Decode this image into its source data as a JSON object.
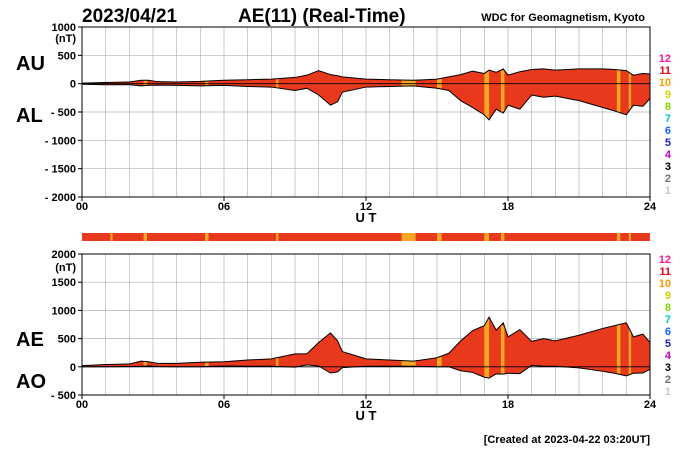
{
  "header": {
    "date": "2023/04/21",
    "title": "AE(11) (Real-Time)",
    "source": "WDC for Geomagnetism, Kyoto"
  },
  "footer": {
    "created": "[Created at 2023-04-22 03:20UT]"
  },
  "station_legend": {
    "labels": [
      "12",
      "11",
      "10",
      "9",
      "8",
      "7",
      "6",
      "5",
      "4",
      "3",
      "2",
      "1"
    ],
    "colors": [
      "#ff1493",
      "#e8001c",
      "#ff9900",
      "#d4d400",
      "#7fd400",
      "#00c8c8",
      "#1464ff",
      "#2020c0",
      "#c000c0",
      "#000000",
      "#6e6e6e",
      "#c8c8c8"
    ]
  },
  "colors": {
    "fill_main": "#e8391d",
    "fill_alt": "#f5a623",
    "grid": "#b4b4b4",
    "line": "#000000"
  },
  "chart_data": [
    {
      "type": "area",
      "name": "AU/AL",
      "side_labels": [
        "AU",
        "AL"
      ],
      "unit_label": "(nT)",
      "xlabel": "U T",
      "xticks": [
        "00",
        "06",
        "12",
        "18",
        "24"
      ],
      "xlim": [
        0,
        24
      ],
      "ylim": [
        -2000,
        1000
      ],
      "yticks": [
        "1000",
        "500",
        "0",
        "- 500",
        "- 1000",
        "- 1500",
        "- 2000"
      ],
      "ytick_values": [
        1000,
        500,
        0,
        -500,
        -1000,
        -1500,
        -2000
      ],
      "x": [
        0,
        1,
        2,
        2.5,
        2.8,
        3.2,
        4,
        5,
        6,
        7,
        8,
        9,
        9.5,
        10,
        10.5,
        10.8,
        11,
        12,
        13,
        14,
        14.5,
        15,
        15.5,
        16,
        16.5,
        17,
        17.2,
        17.5,
        17.8,
        18,
        18.5,
        19,
        19.5,
        20,
        21,
        22,
        22.5,
        23,
        23.3,
        23.7,
        24
      ],
      "series": [
        {
          "name": "AU",
          "values": [
            10,
            20,
            30,
            60,
            60,
            35,
            30,
            40,
            60,
            70,
            80,
            110,
            150,
            230,
            160,
            140,
            120,
            80,
            70,
            60,
            70,
            80,
            120,
            160,
            220,
            180,
            240,
            200,
            260,
            150,
            210,
            250,
            260,
            240,
            260,
            260,
            250,
            230,
            150,
            180,
            170
          ]
        },
        {
          "name": "AL",
          "values": [
            -10,
            -20,
            -20,
            -40,
            -30,
            -25,
            -30,
            -40,
            -30,
            -50,
            -60,
            -120,
            -80,
            -200,
            -380,
            -320,
            -150,
            -60,
            -50,
            -40,
            -60,
            -80,
            -120,
            -300,
            -420,
            -550,
            -640,
            -450,
            -520,
            -380,
            -450,
            -200,
            -240,
            -220,
            -300,
            -420,
            -480,
            -550,
            -380,
            -400,
            -260
          ]
        }
      ]
    },
    {
      "type": "area",
      "name": "AE/AO",
      "side_labels": [
        "AE",
        "AO"
      ],
      "unit_label": "(nT)",
      "xlabel": "U T",
      "xticks": [
        "00",
        "06",
        "12",
        "18",
        "24"
      ],
      "xlim": [
        0,
        24
      ],
      "ylim": [
        -500,
        2000
      ],
      "yticks": [
        "2000",
        "1500",
        "1000",
        "500",
        "0",
        "- 500"
      ],
      "ytick_values": [
        2000,
        1500,
        1000,
        500,
        0,
        -500
      ],
      "x": [
        0,
        1,
        2,
        2.5,
        2.8,
        3.2,
        4,
        5,
        6,
        7,
        8,
        9,
        9.5,
        10,
        10.5,
        10.8,
        11,
        12,
        13,
        14,
        14.5,
        15,
        15.5,
        16,
        16.5,
        17,
        17.2,
        17.5,
        17.8,
        18,
        18.5,
        19,
        19.5,
        20,
        21,
        22,
        22.5,
        23,
        23.3,
        23.7,
        24
      ],
      "series": [
        {
          "name": "AE",
          "values": [
            20,
            40,
            50,
            100,
            90,
            60,
            60,
            80,
            90,
            120,
            140,
            230,
            230,
            430,
            600,
            460,
            270,
            140,
            120,
            100,
            130,
            160,
            240,
            460,
            640,
            730,
            880,
            650,
            780,
            530,
            660,
            450,
            500,
            460,
            560,
            680,
            730,
            780,
            530,
            580,
            430
          ]
        },
        {
          "name": "AO",
          "values": [
            0,
            0,
            5,
            10,
            15,
            5,
            0,
            0,
            15,
            10,
            10,
            -5,
            35,
            15,
            -110,
            -90,
            -15,
            10,
            10,
            10,
            5,
            0,
            0,
            -70,
            -100,
            -185,
            -200,
            -125,
            -130,
            -115,
            -120,
            25,
            10,
            10,
            -20,
            -80,
            -115,
            -160,
            -115,
            -110,
            -45
          ]
        }
      ]
    }
  ],
  "station_bar_segments": [
    [
      0,
      1.2,
      "fill_main"
    ],
    [
      1.2,
      1.3,
      "fill_alt"
    ],
    [
      1.3,
      2.6,
      "fill_main"
    ],
    [
      2.6,
      2.75,
      "fill_alt"
    ],
    [
      2.75,
      5.2,
      "fill_main"
    ],
    [
      5.2,
      5.35,
      "fill_alt"
    ],
    [
      5.35,
      8.2,
      "fill_main"
    ],
    [
      8.2,
      8.3,
      "fill_alt"
    ],
    [
      8.3,
      13.5,
      "fill_main"
    ],
    [
      13.5,
      14.1,
      "fill_alt"
    ],
    [
      14.1,
      15.0,
      "fill_main"
    ],
    [
      15.0,
      15.2,
      "fill_alt"
    ],
    [
      15.2,
      17.0,
      "fill_main"
    ],
    [
      17.0,
      17.2,
      "fill_alt"
    ],
    [
      17.2,
      17.7,
      "fill_main"
    ],
    [
      17.7,
      17.85,
      "fill_alt"
    ],
    [
      17.85,
      22.6,
      "fill_main"
    ],
    [
      22.6,
      22.75,
      "fill_alt"
    ],
    [
      22.75,
      23.1,
      "fill_main"
    ],
    [
      23.1,
      23.2,
      "fill_alt"
    ],
    [
      23.2,
      24,
      "fill_main"
    ]
  ],
  "highlight_bands": [
    [
      2.6,
      2.75
    ],
    [
      5.2,
      5.35
    ],
    [
      8.2,
      8.3
    ],
    [
      13.5,
      14.1
    ],
    [
      15.0,
      15.2
    ],
    [
      17.0,
      17.2
    ],
    [
      17.7,
      17.85
    ],
    [
      22.6,
      22.75
    ],
    [
      23.1,
      23.2
    ]
  ]
}
